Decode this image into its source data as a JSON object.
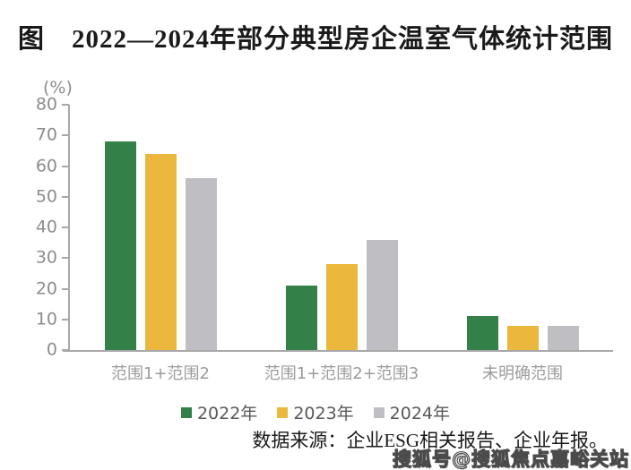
{
  "title": "图　2022—2024年部分典型房企温室气体统计范围",
  "chart_data": {
    "type": "bar",
    "title": "图　2022—2024年部分典型房企温室气体统计范围",
    "xlabel": "",
    "ylabel": "(%)",
    "ylim": [
      0,
      80
    ],
    "ytick_step": 10,
    "grid": false,
    "legend_position": "bottom",
    "categories": [
      "范围1+范围2",
      "范围1+范围2+范围3",
      "未明确范围"
    ],
    "series": [
      {
        "name": "2022年",
        "color": "#338149",
        "values": [
          68,
          21,
          11
        ]
      },
      {
        "name": "2023年",
        "color": "#EBB83D",
        "values": [
          64,
          28,
          8
        ]
      },
      {
        "name": "2024年",
        "color": "#BFBFC3",
        "values": [
          56,
          36,
          8
        ]
      }
    ]
  },
  "source_note": "数据来源：企业ESG相关报告、企业年报。",
  "watermark": "搜狐号@搜狐焦点嘉峪关站",
  "colors": {
    "axis": "#A8A8A8",
    "tick_label": "#8C8C8C",
    "category_label": "#9B9B9B",
    "legend_label": "#595959"
  }
}
